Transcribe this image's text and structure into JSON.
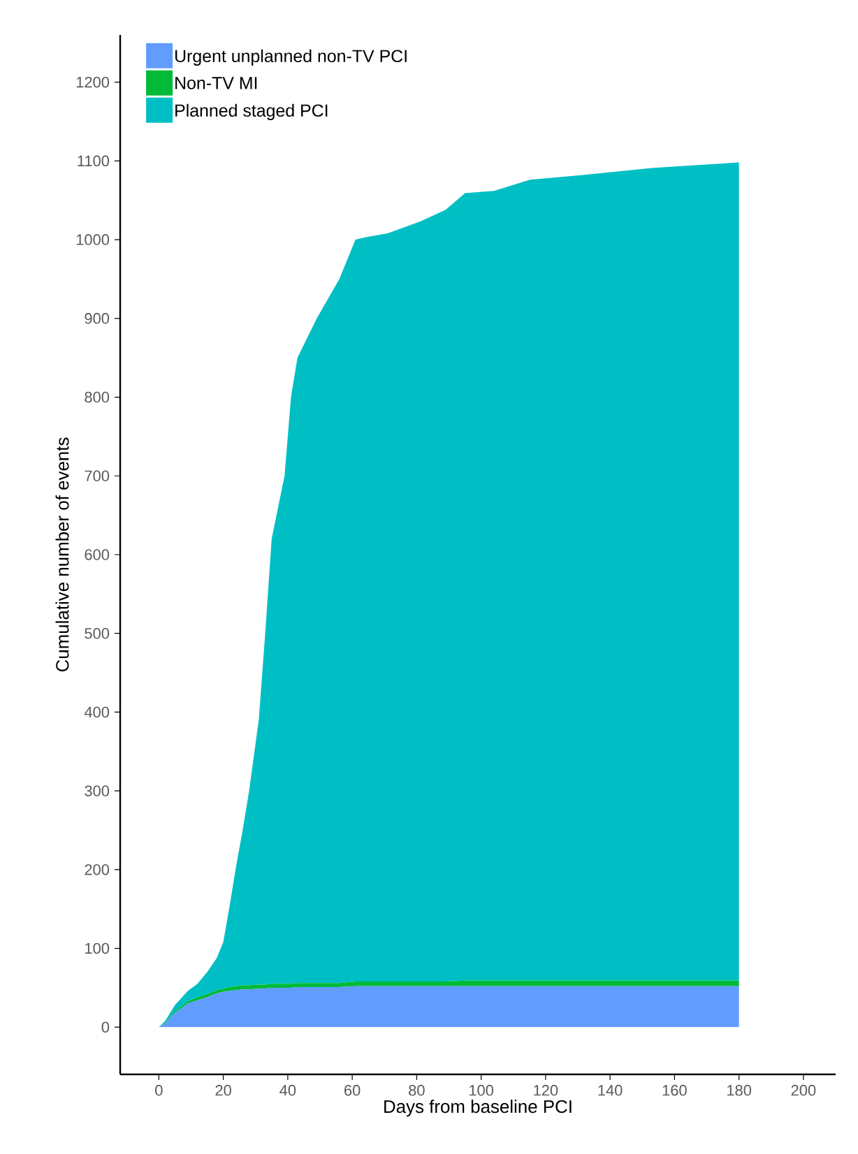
{
  "chart_data": {
    "type": "area",
    "stacked": true,
    "xlabel": "Days from baseline PCI",
    "ylabel": "Cumulative number of events",
    "x": [
      0,
      2,
      5,
      9,
      12,
      15,
      18,
      20,
      22,
      24,
      26,
      28,
      31,
      33,
      35,
      39,
      41,
      43,
      49,
      56,
      61,
      64,
      71,
      81,
      89,
      95,
      104,
      115,
      131,
      153,
      180
    ],
    "series": [
      {
        "name": "Urgent unplanned non-TV PCI",
        "color": "#619cff",
        "values": [
          0,
          5,
          18,
          30,
          34,
          38,
          43,
          45,
          46,
          47,
          48,
          48,
          49,
          49,
          50,
          50,
          50,
          51,
          51,
          51,
          52,
          52,
          52,
          52,
          52,
          52,
          52,
          52,
          52,
          52,
          52
        ]
      },
      {
        "name": "Non-TV MI",
        "color": "#00ba38",
        "values": [
          0,
          1,
          2,
          3,
          4,
          4,
          4,
          4,
          5,
          5,
          5,
          5,
          5,
          5,
          5,
          5,
          5,
          5,
          5,
          5,
          6,
          6,
          6,
          6,
          6,
          7,
          7,
          7,
          7,
          7,
          7
        ]
      },
      {
        "name": "Planned staged PCI",
        "color": "#00bfc4",
        "values": [
          0,
          2,
          8,
          13,
          17,
          28,
          41,
          59,
          104,
          153,
          197,
          247,
          336,
          446,
          565,
          645,
          745,
          794,
          844,
          894,
          942,
          945,
          950,
          965,
          980,
          1000,
          1003,
          1017,
          1023,
          1032,
          1039
        ]
      }
    ],
    "xlim": [
      -12,
      210
    ],
    "ylim": [
      -60,
      1260
    ],
    "xticks": [
      0,
      20,
      40,
      60,
      80,
      100,
      120,
      140,
      160,
      180,
      200
    ],
    "yticks": [
      0,
      100,
      200,
      300,
      400,
      500,
      600,
      700,
      800,
      900,
      1000,
      1100,
      1200
    ],
    "grid": false,
    "legend": "top left"
  }
}
